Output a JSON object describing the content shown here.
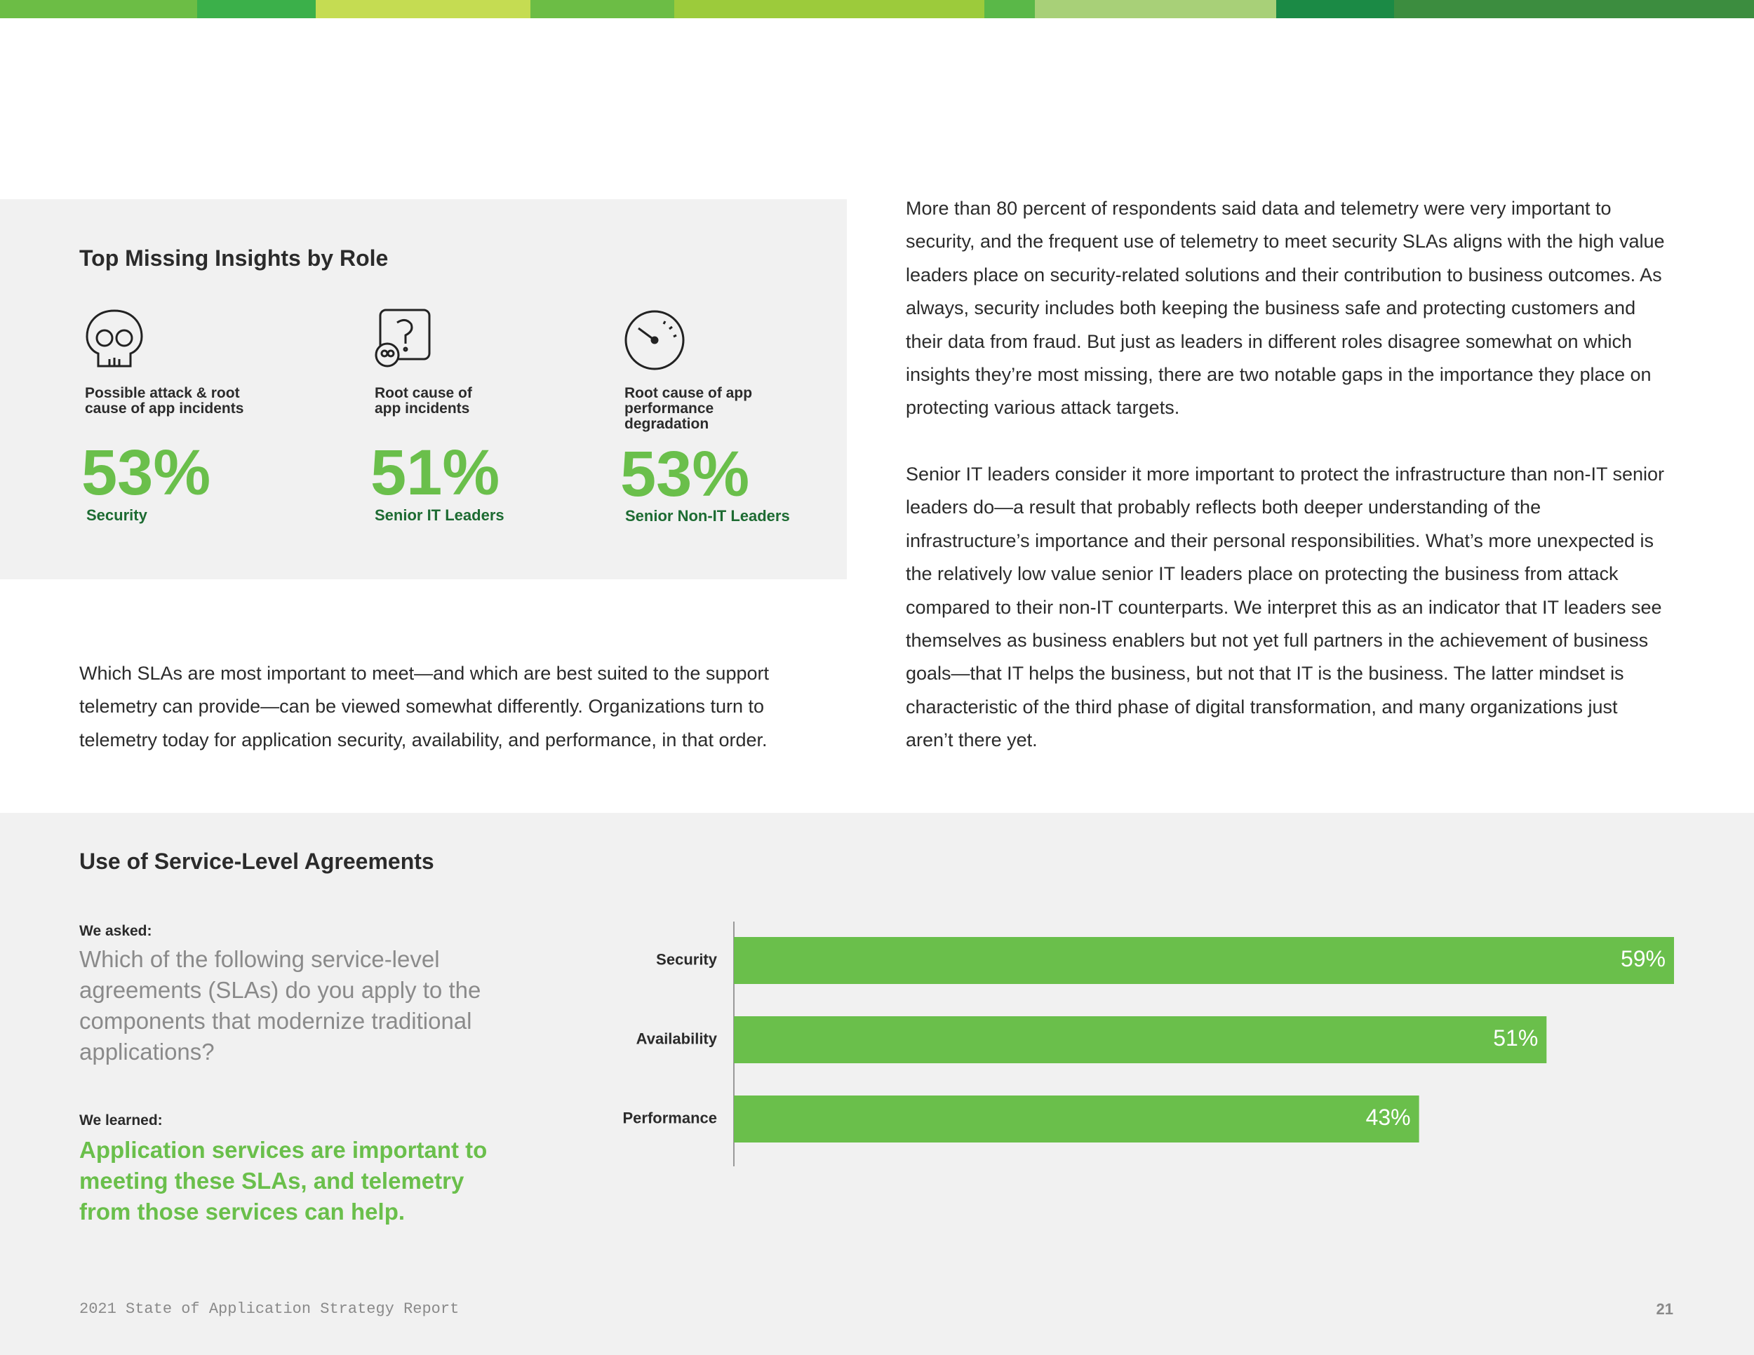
{
  "header": {
    "title": "Top Missing Insights by Role"
  },
  "insights": [
    {
      "label": "Possible attack & root cause of app incidents",
      "percent": "53%",
      "role": "Security"
    },
    {
      "label": "Root cause of app incidents",
      "percent": "51%",
      "role": "Senior IT Leaders"
    },
    {
      "label": "Root cause of app performance degradation",
      "percent": "53%",
      "role": "Senior Non-IT Leaders"
    }
  ],
  "paragraphs": [
    "More than 80 percent of respondents said data and telemetry were very important to security, and the frequent use of telemetry to meet security SLAs aligns with the high value leaders place on security-related solutions and their contribution to business outcomes. As always, security includes both keeping the business safe and protecting customers and their data from fraud. But just as leaders in different roles disagree somewhat on which insights they’re most missing, there are two notable gaps in the importance they place on protecting various attack targets.",
    "Senior IT leaders consider it more important to protect the infrastructure than non-IT senior leaders do—a result that probably reflects both deeper understanding of the infrastructure’s importance and their personal responsibilities. What’s more unexpected is the relatively low value senior IT leaders place on protecting the business from attack compared to their non-IT counterparts. We interpret this as an indicator that IT leaders see themselves as business enablers but not yet full partners in the achievement of business goals—that IT helps the business, but not that IT is the business. The latter mindset is characteristic of the third phase of digital transformation, and many organizations just aren’t there yet.",
    "Which SLAs are most important to meet—and which are best suited to the support telemetry can provide—can be viewed somewhat differently. Organizations turn to telemetry today for application security, availability, and performance, in that order."
  ],
  "survey": {
    "asked_label": "We asked:",
    "question": "Which of the following service-level agreements (SLAs) do you apply to the components that modernize traditional applications?",
    "learned_label": "We learned:",
    "finding": "Application services are important to meeting these SLAs, and telemetry from those services can help."
  },
  "chart_data": {
    "type": "bar",
    "orientation": "horizontal",
    "title": "Use of Service-Level Agreements",
    "categories": [
      "Security",
      "Availability",
      "Performance"
    ],
    "values": [
      59,
      51,
      43
    ],
    "value_labels": [
      "59%",
      "51%",
      "43%"
    ],
    "color": "#6abf4b"
  },
  "footer": {
    "report": "2021 State of Application Strategy Report",
    "page": "21"
  }
}
